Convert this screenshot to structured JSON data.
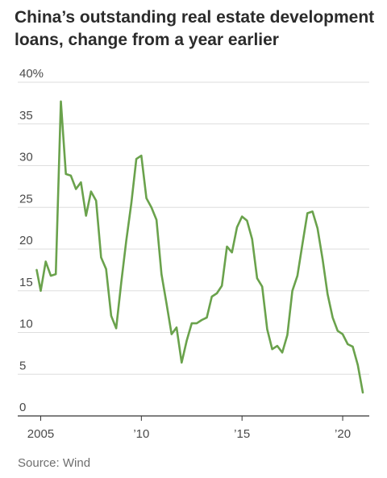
{
  "title_lines": [
    "China’s outstanding real estate development",
    "loans, change from a year earlier"
  ],
  "source": "Source: Wind",
  "chart_data": {
    "type": "line",
    "title": "China’s outstanding real estate development loans, change from a year earlier",
    "xlabel": "",
    "ylabel": "",
    "ylim": [
      0,
      40
    ],
    "xlim": [
      2004.5,
      2021.2
    ],
    "grid": true,
    "y_ticks": [
      {
        "value": 40,
        "label": "40%"
      },
      {
        "value": 35,
        "label": "35"
      },
      {
        "value": 30,
        "label": "30"
      },
      {
        "value": 25,
        "label": "25"
      },
      {
        "value": 20,
        "label": "20"
      },
      {
        "value": 15,
        "label": "15"
      },
      {
        "value": 10,
        "label": "10"
      },
      {
        "value": 5,
        "label": "5"
      },
      {
        "value": 0,
        "label": "0"
      }
    ],
    "x_ticks": [
      {
        "value": 2005,
        "label": "2005"
      },
      {
        "value": 2010,
        "label": "’10"
      },
      {
        "value": 2015,
        "label": "’15"
      },
      {
        "value": 2020,
        "label": "’20"
      }
    ],
    "colors": {
      "line": "#6aa24c",
      "grid": "#dedede",
      "baseline": "#333333"
    },
    "series": [
      {
        "x": [
          2004.8,
          2005.0,
          2005.25,
          2005.5,
          2005.75,
          2006.0,
          2006.25,
          2006.5,
          2006.75,
          2007.0,
          2007.25,
          2007.5,
          2007.75,
          2008.0,
          2008.25,
          2008.5,
          2008.75,
          2009.0,
          2009.25,
          2009.5,
          2009.75,
          2010.0,
          2010.25,
          2010.5,
          2010.75,
          2011.0,
          2011.25,
          2011.5,
          2011.75,
          2012.0,
          2012.25,
          2012.5,
          2012.75,
          2013.0,
          2013.25,
          2013.5,
          2013.75,
          2014.0,
          2014.25,
          2014.5,
          2014.75,
          2015.0,
          2015.25,
          2015.5,
          2015.75,
          2016.0,
          2016.25,
          2016.5,
          2016.75,
          2017.0,
          2017.25,
          2017.5,
          2017.75,
          2018.0,
          2018.25,
          2018.5,
          2018.75,
          2019.0,
          2019.25,
          2019.5,
          2019.75,
          2020.0,
          2020.25,
          2020.5,
          2020.75,
          2021.0
        ],
        "values": [
          17.5,
          15.0,
          18.5,
          16.8,
          17.0,
          37.7,
          29.0,
          28.8,
          27.2,
          28.0,
          24.0,
          26.9,
          25.8,
          19.0,
          17.6,
          12.0,
          10.5,
          16.0,
          21.0,
          25.5,
          30.8,
          31.2,
          26.1,
          25.0,
          23.5,
          17.0,
          13.5,
          9.8,
          10.6,
          6.4,
          9.0,
          11.1,
          11.1,
          11.5,
          11.8,
          14.3,
          14.7,
          15.6,
          20.3,
          19.6,
          22.6,
          23.9,
          23.4,
          21.2,
          16.5,
          15.5,
          10.4,
          8.0,
          8.4,
          7.6,
          9.7,
          15.0,
          16.8,
          20.6,
          24.3,
          24.5,
          22.5,
          18.8,
          14.6,
          11.8,
          10.2,
          9.8,
          8.6,
          8.3,
          6.1,
          2.8
        ]
      }
    ]
  }
}
